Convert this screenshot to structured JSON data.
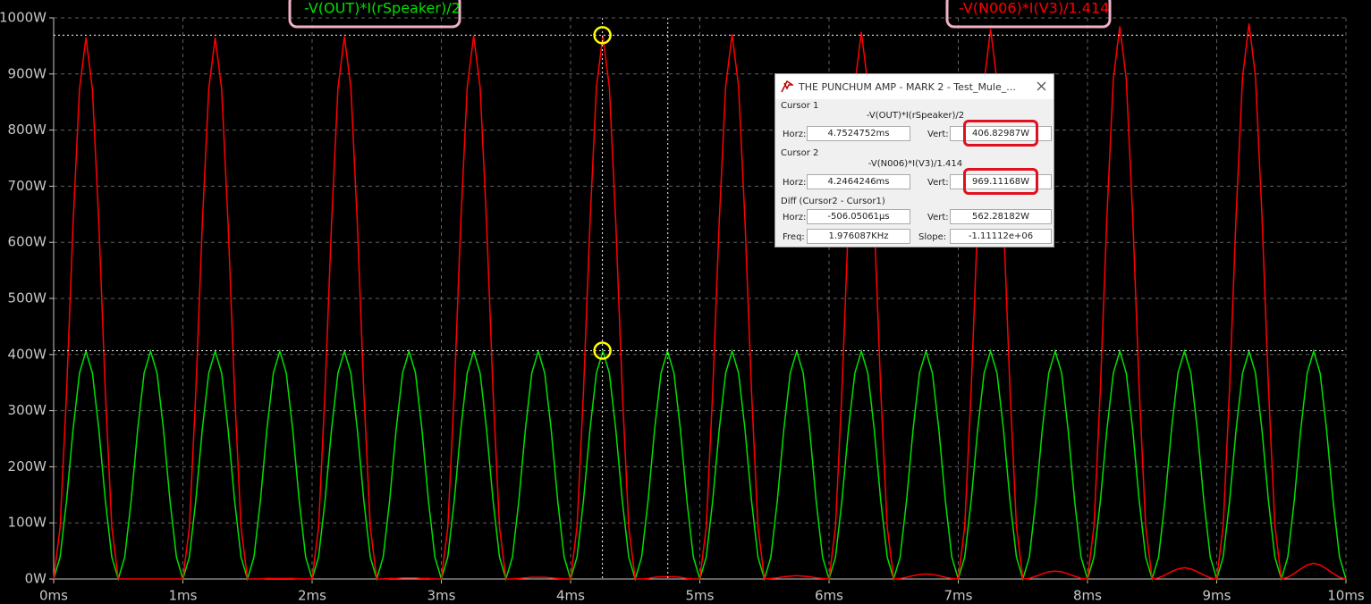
{
  "chart_data": {
    "type": "line",
    "x": [
      0,
      0.05,
      0.1,
      0.15,
      0.2,
      0.25,
      0.3,
      0.35,
      0.4,
      0.45,
      0.5,
      0.55,
      0.6,
      0.65,
      0.7,
      0.75,
      0.8,
      0.85,
      0.9,
      0.95,
      1,
      1.05,
      1.1,
      1.15,
      1.2,
      1.25,
      1.3,
      1.35,
      1.4,
      1.45,
      1.5,
      1.55,
      1.6,
      1.65,
      1.7,
      1.75,
      1.8,
      1.85,
      1.9,
      1.95,
      2,
      2.05,
      2.1,
      2.15,
      2.2,
      2.25,
      2.3,
      2.35,
      2.4,
      2.45,
      2.5,
      2.55,
      2.6,
      2.65,
      2.7,
      2.75,
      2.8,
      2.85,
      2.9,
      2.95,
      3,
      3.05,
      3.1,
      3.15,
      3.2,
      3.25,
      3.3,
      3.35,
      3.4,
      3.45,
      3.5,
      3.55,
      3.6,
      3.65,
      3.7,
      3.75,
      3.8,
      3.85,
      3.9,
      3.95,
      4,
      4.05,
      4.1,
      4.15,
      4.2,
      4.25,
      4.3,
      4.35,
      4.4,
      4.45,
      4.5,
      4.55,
      4.6,
      4.65,
      4.7,
      4.75,
      4.8,
      4.85,
      4.9,
      4.95,
      5,
      5.05,
      5.1,
      5.15,
      5.2,
      5.25,
      5.3,
      5.35,
      5.4,
      5.45,
      5.5,
      5.55,
      5.6,
      5.65,
      5.7,
      5.75,
      5.8,
      5.85,
      5.9,
      5.95,
      6,
      6.05,
      6.1,
      6.15,
      6.2,
      6.25,
      6.3,
      6.35,
      6.4,
      6.45,
      6.5,
      6.55,
      6.6,
      6.65,
      6.7,
      6.75,
      6.8,
      6.85,
      6.9,
      6.95,
      7,
      7.05,
      7.1,
      7.15,
      7.2,
      7.25,
      7.3,
      7.35,
      7.4,
      7.45,
      7.5,
      7.55,
      7.6,
      7.65,
      7.7,
      7.75,
      7.8,
      7.85,
      7.9,
      7.95,
      8,
      8.05,
      8.1,
      8.15,
      8.2,
      8.25,
      8.3,
      8.35,
      8.4,
      8.45,
      8.5,
      8.55,
      8.6,
      8.65,
      8.7,
      8.75,
      8.8,
      8.85,
      8.9,
      8.95,
      9,
      9.05,
      9.1,
      9.15,
      9.2,
      9.25,
      9.3,
      9.35,
      9.4,
      9.45,
      9.5,
      9.55,
      9.6,
      9.65,
      9.7,
      9.75,
      9.8,
      9.85,
      9.9,
      9.95,
      10
    ],
    "series": [
      {
        "name": "-V(OUT)*I(rSpeaker)/2",
        "color": "#00e000",
        "values": [
          0,
          39,
          140,
          266,
          367,
          406,
          367,
          266,
          140,
          39,
          0,
          39,
          140,
          266,
          367,
          406,
          367,
          266,
          140,
          39,
          0,
          39,
          140,
          266,
          367,
          406,
          367,
          266,
          140,
          39,
          0,
          39,
          140,
          266,
          367,
          406,
          367,
          266,
          140,
          39,
          0,
          39,
          140,
          266,
          367,
          406,
          367,
          266,
          140,
          39,
          0,
          39,
          140,
          266,
          367,
          406,
          367,
          266,
          140,
          39,
          0,
          39,
          140,
          266,
          367,
          406,
          367,
          266,
          140,
          39,
          0,
          39,
          140,
          266,
          367,
          406,
          367,
          266,
          140,
          39,
          0,
          39,
          140,
          266,
          367,
          406,
          367,
          266,
          140,
          39,
          0,
          39,
          140,
          266,
          367,
          406,
          367,
          266,
          140,
          39,
          0,
          39,
          140,
          266,
          367,
          406,
          367,
          266,
          140,
          39,
          0,
          39,
          140,
          266,
          367,
          406,
          367,
          266,
          140,
          39,
          0,
          39,
          140,
          266,
          367,
          406,
          367,
          266,
          140,
          39,
          0,
          39,
          140,
          266,
          367,
          406,
          367,
          266,
          140,
          39,
          0,
          39,
          140,
          266,
          367,
          406,
          367,
          266,
          140,
          39,
          0,
          39,
          140,
          266,
          367,
          406,
          367,
          266,
          140,
          39,
          0,
          39,
          140,
          266,
          367,
          406,
          367,
          266,
          140,
          39,
          0,
          39,
          140,
          266,
          367,
          406,
          367,
          266,
          140,
          39,
          0,
          39,
          140,
          266,
          367,
          406,
          367,
          266,
          140,
          39,
          0,
          39,
          140,
          266,
          367,
          406,
          367,
          266,
          140,
          39,
          0
        ]
      },
      {
        "name": "-V(N006)*I(V3)/1.414",
        "color": "#ff0000",
        "values": [
          0,
          92,
          333,
          632,
          873,
          965,
          873,
          632,
          333,
          92,
          0,
          0,
          0,
          0,
          0,
          0,
          0,
          0,
          0,
          0,
          0,
          92,
          333,
          632,
          873,
          965,
          873,
          632,
          333,
          92,
          0,
          0,
          0,
          1,
          1,
          1,
          1,
          1,
          0,
          0,
          0,
          92,
          334,
          633,
          875,
          967,
          875,
          633,
          334,
          92,
          0,
          0,
          1,
          1,
          2,
          2,
          2,
          1,
          1,
          0,
          0,
          92,
          334,
          634,
          876,
          968,
          876,
          634,
          334,
          92,
          0,
          0,
          1,
          2,
          3,
          3,
          3,
          2,
          1,
          0,
          0,
          93,
          335,
          634,
          876,
          969,
          876,
          634,
          335,
          93,
          0,
          0,
          1,
          3,
          4,
          4,
          4,
          3,
          1,
          0,
          0,
          93,
          335,
          636,
          878,
          971,
          878,
          636,
          335,
          93,
          0,
          1,
          2,
          4,
          5,
          6,
          5,
          4,
          2,
          1,
          0,
          93,
          337,
          638,
          882,
          975,
          882,
          638,
          337,
          93,
          0,
          1,
          3,
          6,
          8,
          9,
          8,
          6,
          3,
          1,
          0,
          94,
          339,
          641,
          886,
          980,
          886,
          641,
          339,
          94,
          0,
          1,
          5,
          9,
          13,
          14,
          13,
          9,
          5,
          1,
          0,
          94,
          340,
          645,
          891,
          985,
          891,
          645,
          340,
          94,
          0,
          2,
          7,
          13,
          18,
          20,
          18,
          13,
          7,
          2,
          0,
          95,
          342,
          648,
          895,
          990,
          895,
          648,
          342,
          95,
          0,
          3,
          10,
          18,
          25,
          28,
          25,
          18,
          10,
          3,
          0
        ]
      }
    ],
    "xlim": [
      0,
      10
    ],
    "xticks": [
      {
        "value": 0,
        "label": "0ms"
      },
      {
        "value": 1,
        "label": "1ms"
      },
      {
        "value": 2,
        "label": "2ms"
      },
      {
        "value": 3,
        "label": "3ms"
      },
      {
        "value": 4,
        "label": "4ms"
      },
      {
        "value": 5,
        "label": "5ms"
      },
      {
        "value": 6,
        "label": "6ms"
      },
      {
        "value": 7,
        "label": "7ms"
      },
      {
        "value": 8,
        "label": "8ms"
      },
      {
        "value": 9,
        "label": "9ms"
      },
      {
        "value": 10,
        "label": "10ms"
      }
    ],
    "ylim": [
      0,
      1000
    ],
    "yticks": [
      {
        "value": 0,
        "label": "0W"
      },
      {
        "value": 100,
        "label": "100W"
      },
      {
        "value": 200,
        "label": "200W"
      },
      {
        "value": 300,
        "label": "300W"
      },
      {
        "value": 400,
        "label": "400W"
      },
      {
        "value": 500,
        "label": "500W"
      },
      {
        "value": 600,
        "label": "600W"
      },
      {
        "value": 700,
        "label": "700W"
      },
      {
        "value": 800,
        "label": "800W"
      },
      {
        "value": 900,
        "label": "900W"
      },
      {
        "value": 1000,
        "label": "1000W"
      }
    ],
    "grid": true,
    "cursors": [
      {
        "x": 4.7524752,
        "y": 406.82987
      },
      {
        "x": 4.2464246,
        "y": 969.11168
      }
    ]
  },
  "dialog": {
    "title": "THE PUNCHUM AMP - MARK 2 - Test_Mule_...",
    "cursor1": {
      "label": "Cursor 1",
      "trace": "-V(OUT)*I(rSpeaker)/2",
      "horz_label": "Horz:",
      "horz": "4.7524752ms",
      "vert_label": "Vert:",
      "vert": "406.82987W"
    },
    "cursor2": {
      "label": "Cursor 2",
      "trace": "-V(N006)*I(V3)/1.414",
      "horz_label": "Horz:",
      "horz": "4.2464246ms",
      "vert_label": "Vert:",
      "vert": "969.11168W"
    },
    "diff": {
      "label": "Diff (Cursor2 - Cursor1)",
      "horz_label": "Horz:",
      "horz": "-506.05061µs",
      "vert_label": "Vert:",
      "vert": "562.28182W",
      "freq_label": "Freq:",
      "freq": "1.976087KHz",
      "slope_label": "Slope:",
      "slope": "-1.11112e+06"
    }
  }
}
